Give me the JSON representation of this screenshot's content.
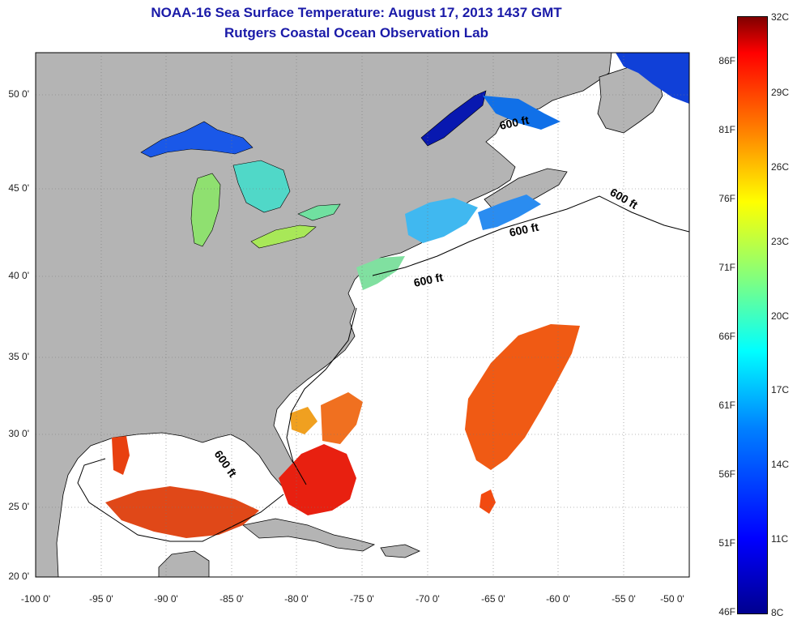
{
  "title": "NOAA-16 Sea Surface Temperature:  August 17, 2013 1437 GMT",
  "subtitle": "Rutgers Coastal Ocean Observation Lab",
  "latitude_ticks": [
    "50 0'",
    "45 0'",
    "40 0'",
    "35 0'",
    "30 0'",
    "25 0'",
    "20 0'"
  ],
  "longitude_ticks": [
    "-100 0'",
    "-95 0'",
    "-90 0'",
    "-85 0'",
    "-80 0'",
    "-75 0'",
    "-70 0'",
    "-65 0'",
    "-60 0'",
    "-55 0'",
    "-50 0'"
  ],
  "contour_labels": [
    "600 ft",
    "600 ft",
    "600 ft",
    "600 ft",
    "600 ft"
  ],
  "colorbar": {
    "fahrenheit": [
      "86F",
      "81F",
      "76F",
      "71F",
      "66F",
      "61F",
      "56F",
      "51F",
      "46F"
    ],
    "celsius": [
      "32C",
      "29C",
      "26C",
      "23C",
      "20C",
      "17C",
      "14C",
      "11C",
      "8C"
    ],
    "colors": [
      "#800000",
      "#ff0000",
      "#ff8000",
      "#ffff00",
      "#80ff80",
      "#00ffff",
      "#0080ff",
      "#0000ff",
      "#00008f"
    ]
  },
  "colors": {
    "land": "#b4b4b4",
    "ocean": "#ffffff",
    "title": "#1a1aa8"
  }
}
